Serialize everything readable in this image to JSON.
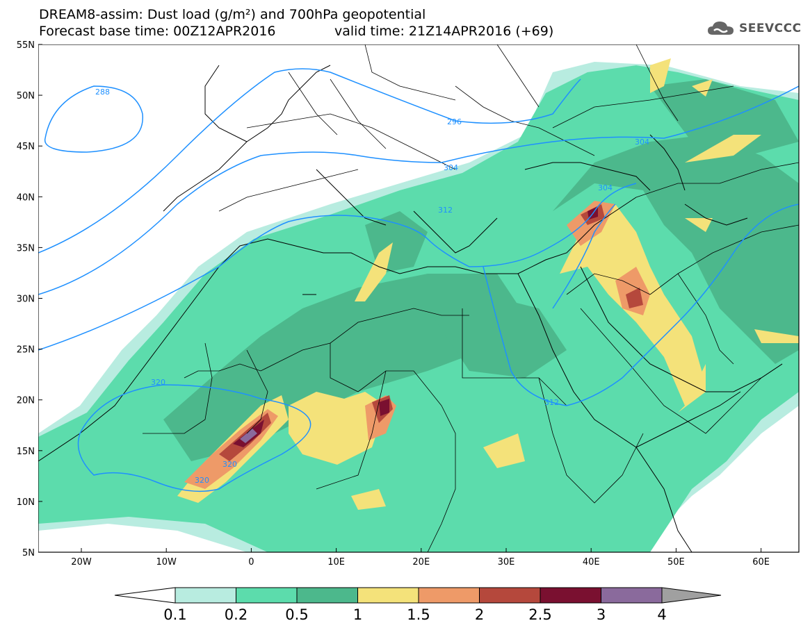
{
  "header": {
    "title_line1": "DREAM8-assim: Dust load (g/m²) and 700hPa geopotential",
    "title_line2_base": "Forecast base time: 00Z12APR2016",
    "title_line2_valid": "valid time: 21Z14APR2016 (+69)"
  },
  "logo": {
    "text": "SEEVCCC",
    "icon": "cloud-icon"
  },
  "map": {
    "lat_labels": [
      "55N",
      "50N",
      "45N",
      "40N",
      "35N",
      "30N",
      "25N",
      "20N",
      "15N",
      "10N",
      "5N"
    ],
    "lon_labels": [
      "20W",
      "10W",
      "0",
      "10E",
      "20E",
      "30E",
      "40E",
      "50E",
      "60E"
    ],
    "contour_labels": [
      "288",
      "296",
      "304",
      "312",
      "320",
      "320",
      "320",
      "304",
      "304",
      "312"
    ],
    "colors": {
      "frame": "#000000",
      "contour": "#1e90ff",
      "land_border": "#000000"
    }
  },
  "colorbar": {
    "labels": [
      "0.1",
      "0.2",
      "0.5",
      "1",
      "1.5",
      "2",
      "2.5",
      "3",
      "4"
    ],
    "colors": [
      "#ffffff",
      "#b8ece0",
      "#5cdcac",
      "#4cb88c",
      "#f4e27a",
      "#ee9a68",
      "#b5483c",
      "#7a1030",
      "#8a6a9c",
      "#a0a0a0"
    ]
  }
}
